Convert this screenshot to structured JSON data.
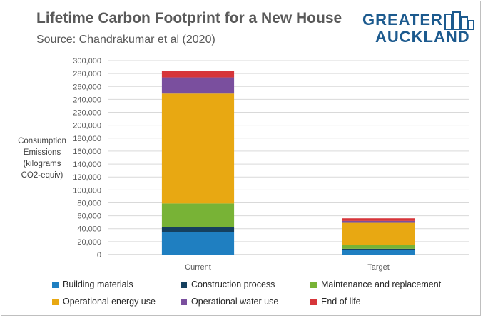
{
  "header": {
    "title": "Lifetime Carbon Footprint for a New House",
    "subtitle": "Source: Chandrakumar et al (2020)"
  },
  "logo": {
    "line1": "GREATER",
    "line2": "AUCKLAND"
  },
  "chart_data": {
    "type": "bar",
    "stacked": true,
    "title": "Lifetime Carbon Footprint for a New House",
    "subtitle": "Source: Chandrakumar et al (2020)",
    "ylabel": [
      "Consumption",
      "Emissions",
      "(kilograms",
      "CO2-equiv)"
    ],
    "xlabel": "",
    "categories": [
      "Current",
      "Target"
    ],
    "ylim": [
      0,
      300000
    ],
    "yticks": [
      0,
      20000,
      40000,
      60000,
      80000,
      100000,
      120000,
      140000,
      160000,
      180000,
      200000,
      220000,
      240000,
      260000,
      280000,
      300000
    ],
    "ytick_labels": [
      "0",
      "20,000",
      "40,000",
      "60,000",
      "80,000",
      "100,000",
      "120,000",
      "140,000",
      "160,000",
      "180,000",
      "200,000",
      "220,000",
      "240,000",
      "260,000",
      "280,000",
      "300,000"
    ],
    "grid": true,
    "legend_position": "bottom",
    "series": [
      {
        "name": "Building materials",
        "color": "#1f7fc1",
        "values": [
          35000,
          7000
        ]
      },
      {
        "name": "Construction process",
        "color": "#15405f",
        "values": [
          7000,
          2000
        ]
      },
      {
        "name": "Maintenance and replacement",
        "color": "#78b336",
        "values": [
          37000,
          6000
        ]
      },
      {
        "name": "Operational energy use",
        "color": "#e8a812",
        "values": [
          170000,
          34000
        ]
      },
      {
        "name": "Operational water use",
        "color": "#7a4f9e",
        "values": [
          25000,
          3000
        ]
      },
      {
        "name": "End of life",
        "color": "#d6353a",
        "values": [
          10000,
          4000
        ]
      }
    ]
  }
}
